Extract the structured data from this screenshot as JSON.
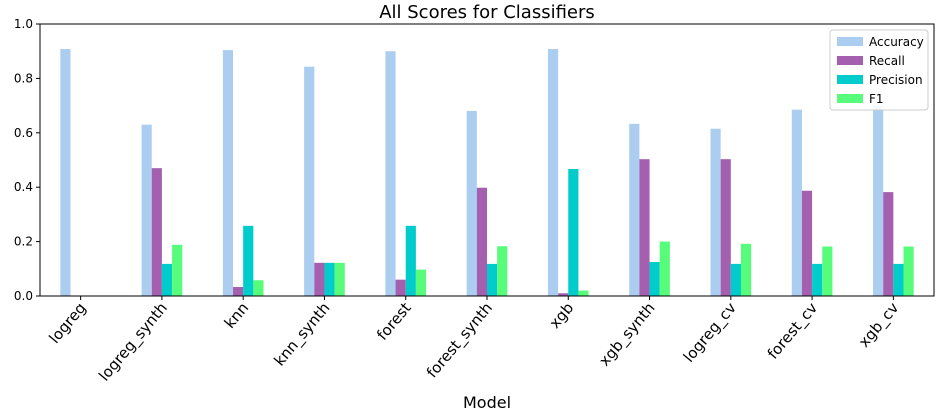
{
  "chart_data": {
    "type": "bar",
    "title": "All Scores for Classifiers",
    "xlabel": "Model",
    "ylabel": "",
    "ylim": [
      0,
      1.0
    ],
    "yticks": [
      "0.0",
      "0.2",
      "0.4",
      "0.6",
      "0.8",
      "1.0"
    ],
    "grid": false,
    "legend_position": "top-right",
    "categories": [
      "logreg",
      "logreg_synth",
      "knn",
      "knn_synth",
      "forest",
      "forest_synth",
      "xgb",
      "xgb_synth",
      "logreg_cv",
      "forest_cv",
      "xgb_cv"
    ],
    "series": [
      {
        "name": "Accuracy",
        "color": "#abcdf0",
        "values": [
          0.908,
          0.63,
          0.904,
          0.843,
          0.9,
          0.68,
          0.908,
          0.633,
          0.615,
          0.685,
          0.7
        ]
      },
      {
        "name": "Recall",
        "color": "#a460af",
        "values": [
          0.0,
          0.47,
          0.033,
          0.122,
          0.06,
          0.398,
          0.01,
          0.503,
          0.503,
          0.387,
          0.382
        ]
      },
      {
        "name": "Precision",
        "color": "#00cccc",
        "values": [
          0.0,
          0.118,
          0.258,
          0.122,
          0.258,
          0.118,
          0.467,
          0.125,
          0.118,
          0.118,
          0.118
        ]
      },
      {
        "name": "F1",
        "color": "#58fc7b",
        "values": [
          0.0,
          0.188,
          0.058,
          0.122,
          0.097,
          0.183,
          0.02,
          0.2,
          0.192,
          0.182,
          0.182
        ]
      }
    ]
  }
}
